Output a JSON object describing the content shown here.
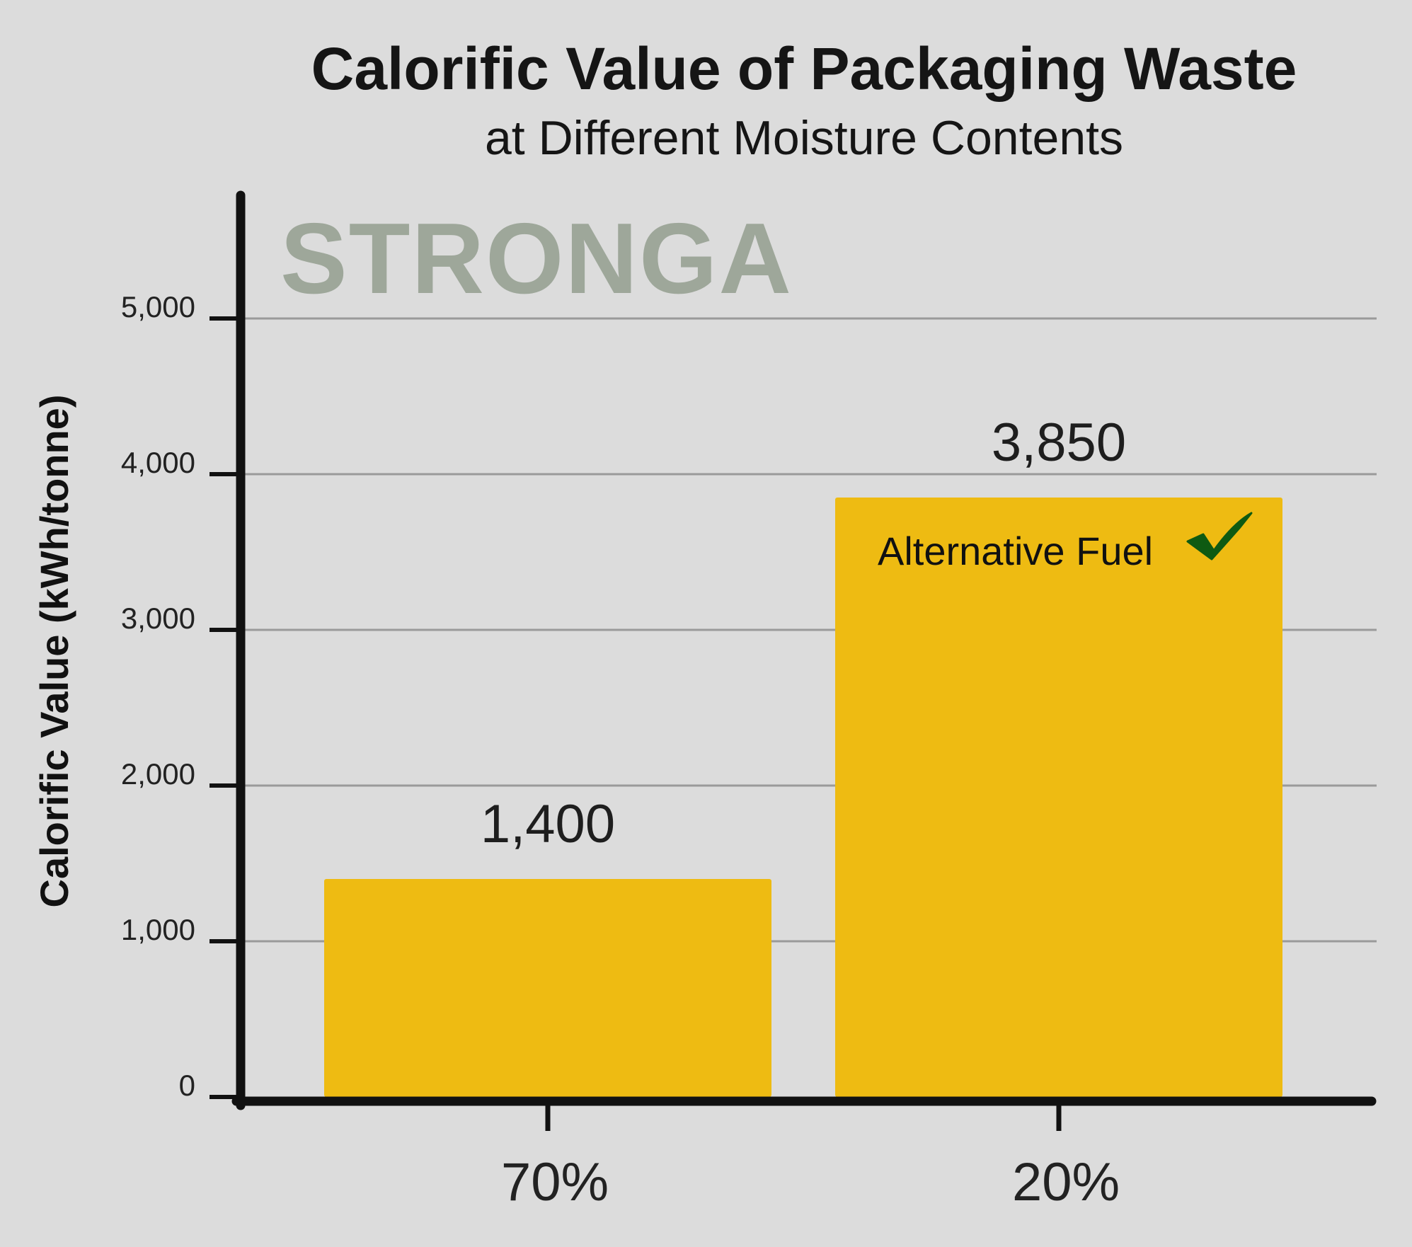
{
  "logo_text": "STRONGA",
  "chart_data": {
    "type": "bar",
    "title": "Calorific Value of Packaging Waste",
    "subtitle": "at Different Moisture Contents",
    "ylabel": "Calorific Value (kWh/tonne)",
    "xlabel": "",
    "categories": [
      "70%",
      "20%"
    ],
    "values": [
      1400,
      3850
    ],
    "data_labels": [
      "1,400",
      "3,850"
    ],
    "ylim": [
      0,
      5000
    ],
    "yticks": [
      0,
      1000,
      2000,
      3000,
      4000,
      5000
    ],
    "ytick_labels": [
      "0",
      "1,000",
      "2,000",
      "3,000",
      "4,000",
      "5,000"
    ],
    "grid": true,
    "bar_color": "#eebb12",
    "annotation": {
      "text": "Alternative Fuel",
      "category_index": 1,
      "icon": "checkmark-icon",
      "icon_color": "#0e5a12"
    }
  }
}
